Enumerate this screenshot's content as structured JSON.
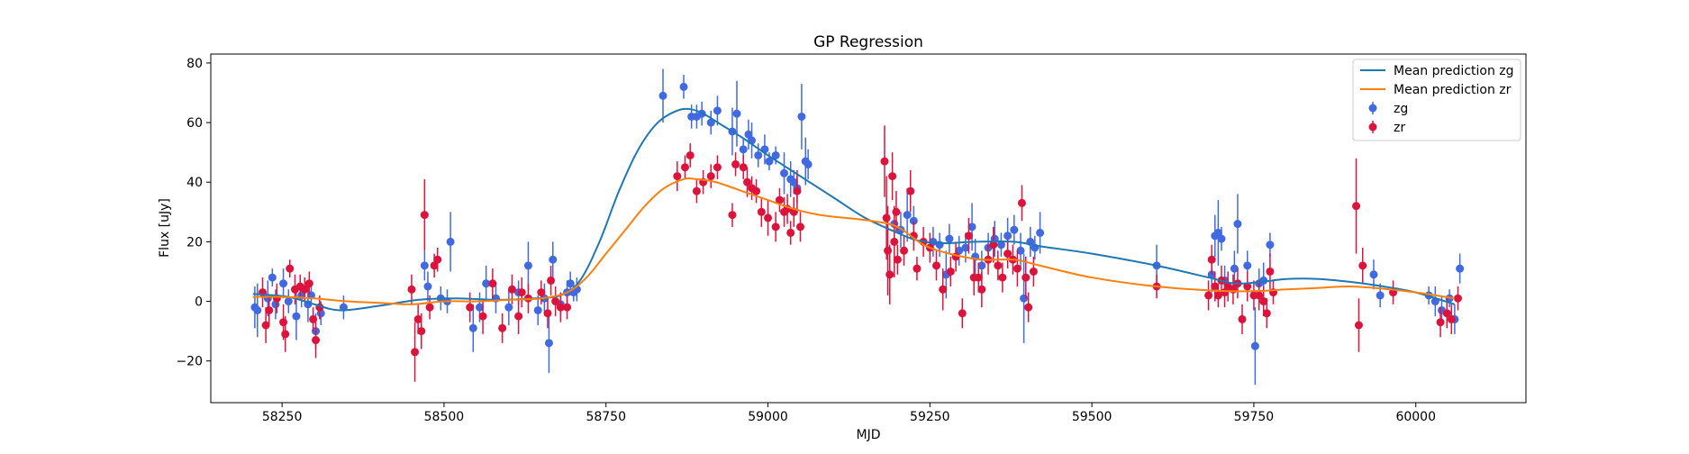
{
  "chart_data": {
    "type": "scatter",
    "title": "GP Regression",
    "xlabel": "MJD",
    "ylabel": "Flux [uJy]",
    "xlim": [
      58140,
      60170
    ],
    "ylim": [
      -34,
      83
    ],
    "x_ticks": [
      58250,
      58500,
      58750,
      59000,
      59250,
      59500,
      59750,
      60000
    ],
    "y_ticks": [
      -20,
      0,
      20,
      40,
      60,
      80
    ],
    "grid": false,
    "legend_position": "top-right",
    "colors": {
      "zg_mean": "#1f77b4",
      "zr_mean": "#ff7f0e",
      "zg_points": "#4169e1",
      "zr_points": "#dc143c"
    },
    "lines": [
      {
        "name": "Mean prediction zg",
        "x": [
          58205,
          58260,
          58300,
          58340,
          58400,
          58460,
          58520,
          58580,
          58640,
          58680,
          58710,
          58740,
          58770,
          58800,
          58830,
          58860,
          58880,
          58900,
          58930,
          58960,
          59000,
          59050,
          59100,
          59150,
          59200,
          59230,
          59270,
          59320,
          59380,
          59420,
          59500,
          59600,
          59680,
          59720,
          59760,
          59800,
          59850,
          59900,
          59950,
          60000,
          60060
        ],
        "y": [
          2.5,
          1.5,
          -1,
          -3,
          -1.5,
          0.5,
          1,
          0.5,
          1,
          2,
          7,
          20,
          37,
          51,
          60,
          64,
          64.5,
          63,
          59,
          55,
          49,
          42,
          35,
          28,
          23,
          20.5,
          19.5,
          20,
          20,
          18.5,
          16,
          12,
          8,
          6,
          6.5,
          7.5,
          7.5,
          6.5,
          5,
          3,
          -1
        ]
      },
      {
        "name": "Mean prediction zr",
        "x": [
          58205,
          58250,
          58300,
          58350,
          58400,
          58450,
          58500,
          58550,
          58600,
          58650,
          58690,
          58720,
          58750,
          58780,
          58810,
          58840,
          58870,
          58890,
          58920,
          58960,
          59000,
          59040,
          59080,
          59120,
          59160,
          59200,
          59240,
          59280,
          59330,
          59380,
          59420,
          59500,
          59600,
          59700,
          59760,
          59800,
          59850,
          59900,
          59960,
          60000,
          60060
        ],
        "y": [
          1.5,
          1.5,
          1,
          0,
          -0.5,
          -1,
          0,
          0,
          0.5,
          1,
          3,
          8,
          16,
          24,
          32,
          38,
          41,
          41,
          40,
          37,
          34,
          31,
          29,
          28,
          27,
          25,
          19,
          16,
          14,
          14,
          12,
          8,
          5,
          3.5,
          3.5,
          4,
          4.5,
          5,
          4,
          3,
          1
        ]
      }
    ],
    "series": [
      {
        "name": "zg",
        "points": [
          [
            58208,
            -2,
            7
          ],
          [
            58212,
            -3,
            9
          ],
          [
            58228,
            1,
            6
          ],
          [
            58235,
            8,
            3
          ],
          [
            58240,
            -1,
            5
          ],
          [
            58252,
            6,
            5
          ],
          [
            58260,
            0,
            4
          ],
          [
            58272,
            -5,
            8
          ],
          [
            58280,
            2,
            4
          ],
          [
            58290,
            -1,
            6
          ],
          [
            58295,
            2,
            3
          ],
          [
            58302,
            -10,
            6
          ],
          [
            58310,
            -4,
            4
          ],
          [
            58345,
            -2,
            4
          ],
          [
            58470,
            12,
            5
          ],
          [
            58475,
            5,
            5
          ],
          [
            58495,
            1,
            4
          ],
          [
            58505,
            0,
            4
          ],
          [
            58510,
            20,
            10
          ],
          [
            58545,
            -9,
            8
          ],
          [
            58555,
            -2,
            5
          ],
          [
            58565,
            6,
            6
          ],
          [
            58580,
            1,
            5
          ],
          [
            58600,
            -2,
            6
          ],
          [
            58615,
            3,
            4
          ],
          [
            58630,
            12,
            8
          ],
          [
            58645,
            -3,
            5
          ],
          [
            58655,
            1,
            5
          ],
          [
            58662,
            -14,
            10
          ],
          [
            58668,
            14,
            6
          ],
          [
            58680,
            -1,
            4
          ],
          [
            58690,
            3,
            4
          ],
          [
            58695,
            6,
            4
          ],
          [
            58700,
            3,
            3
          ],
          [
            58705,
            4,
            4
          ],
          [
            58838,
            69,
            9
          ],
          [
            58870,
            72,
            4
          ],
          [
            58882,
            62,
            4
          ],
          [
            58890,
            62,
            4
          ],
          [
            58898,
            63,
            4
          ],
          [
            58912,
            60,
            4
          ],
          [
            58922,
            64,
            5
          ],
          [
            58945,
            57,
            8
          ],
          [
            58952,
            63,
            11
          ],
          [
            58962,
            51,
            4
          ],
          [
            58970,
            56,
            5
          ],
          [
            58975,
            54,
            6
          ],
          [
            58985,
            49,
            4
          ],
          [
            58995,
            51,
            5
          ],
          [
            59002,
            47,
            3
          ],
          [
            59012,
            49,
            3
          ],
          [
            59025,
            43,
            7
          ],
          [
            59035,
            41,
            6
          ],
          [
            59040,
            40,
            4
          ],
          [
            59045,
            38,
            5
          ],
          [
            59052,
            62,
            11
          ],
          [
            59058,
            47,
            8
          ],
          [
            59062,
            46,
            5
          ],
          [
            59195,
            26,
            6
          ],
          [
            59205,
            24,
            6
          ],
          [
            59215,
            29,
            9
          ],
          [
            59225,
            27,
            5
          ],
          [
            59255,
            20,
            5
          ],
          [
            59265,
            19,
            4
          ],
          [
            59275,
            9,
            8
          ],
          [
            59280,
            21,
            5
          ],
          [
            59295,
            17,
            5
          ],
          [
            59305,
            18,
            5
          ],
          [
            59315,
            25,
            8
          ],
          [
            59320,
            15,
            6
          ],
          [
            59330,
            12,
            5
          ],
          [
            59340,
            18,
            5
          ],
          [
            59350,
            21,
            6
          ],
          [
            59360,
            19,
            4
          ],
          [
            59370,
            22,
            6
          ],
          [
            59380,
            24,
            5
          ],
          [
            59390,
            17,
            6
          ],
          [
            59395,
            1,
            15
          ],
          [
            59405,
            20,
            5
          ],
          [
            59412,
            18,
            4
          ],
          [
            59420,
            23,
            7
          ],
          [
            59600,
            12,
            7
          ],
          [
            59685,
            9,
            6
          ],
          [
            59690,
            22,
            7
          ],
          [
            59695,
            23,
            11
          ],
          [
            59700,
            21,
            4
          ],
          [
            59705,
            7,
            5
          ],
          [
            59720,
            11,
            6
          ],
          [
            59725,
            26,
            10
          ],
          [
            59740,
            12,
            5
          ],
          [
            59752,
            -15,
            13
          ],
          [
            59758,
            6,
            5
          ],
          [
            59765,
            7,
            6
          ],
          [
            59775,
            19,
            4
          ],
          [
            59935,
            9,
            5
          ],
          [
            59945,
            2,
            4
          ],
          [
            60020,
            2,
            3
          ],
          [
            60030,
            0,
            5
          ],
          [
            60040,
            -3,
            5
          ],
          [
            60052,
            1,
            3
          ],
          [
            60060,
            -6,
            5
          ],
          [
            60068,
            11,
            5
          ]
        ]
      },
      {
        "name": "zr",
        "points": [
          [
            58220,
            3,
            5
          ],
          [
            58225,
            -8,
            6
          ],
          [
            58230,
            -3,
            5
          ],
          [
            58242,
            1,
            5
          ],
          [
            58252,
            -7,
            6
          ],
          [
            58255,
            -11,
            6
          ],
          [
            58262,
            11,
            3
          ],
          [
            58270,
            4,
            5
          ],
          [
            58278,
            5,
            4
          ],
          [
            58285,
            4,
            4
          ],
          [
            58292,
            6,
            4
          ],
          [
            58298,
            -6,
            4
          ],
          [
            58302,
            -13,
            6
          ],
          [
            58308,
            -2,
            4
          ],
          [
            58450,
            4,
            5
          ],
          [
            58455,
            -17,
            10
          ],
          [
            58460,
            -6,
            5
          ],
          [
            58465,
            -10,
            6
          ],
          [
            58470,
            29,
            12
          ],
          [
            58478,
            -2,
            4
          ],
          [
            58485,
            12,
            4
          ],
          [
            58490,
            14,
            4
          ],
          [
            58540,
            -2,
            5
          ],
          [
            58560,
            -5,
            6
          ],
          [
            58575,
            6,
            5
          ],
          [
            58590,
            -9,
            5
          ],
          [
            58605,
            4,
            5
          ],
          [
            58615,
            -5,
            6
          ],
          [
            58620,
            3,
            5
          ],
          [
            58630,
            1,
            5
          ],
          [
            58650,
            3,
            4
          ],
          [
            58660,
            -4,
            5
          ],
          [
            58665,
            7,
            5
          ],
          [
            58672,
            0,
            5
          ],
          [
            58680,
            -2,
            5
          ],
          [
            58690,
            -2,
            4
          ],
          [
            58860,
            42,
            5
          ],
          [
            58872,
            45,
            4
          ],
          [
            58880,
            49,
            4
          ],
          [
            58890,
            37,
            4
          ],
          [
            58900,
            40,
            4
          ],
          [
            58912,
            42,
            4
          ],
          [
            58922,
            45,
            4
          ],
          [
            58945,
            29,
            4
          ],
          [
            58950,
            46,
            4
          ],
          [
            58962,
            45,
            4
          ],
          [
            58968,
            40,
            5
          ],
          [
            58975,
            38,
            4
          ],
          [
            58982,
            37,
            4
          ],
          [
            58990,
            30,
            5
          ],
          [
            59000,
            28,
            6
          ],
          [
            59012,
            25,
            5
          ],
          [
            59018,
            34,
            4
          ],
          [
            59025,
            30,
            5
          ],
          [
            59030,
            31,
            5
          ],
          [
            59035,
            23,
            4
          ],
          [
            59040,
            30,
            5
          ],
          [
            59045,
            37,
            7
          ],
          [
            59050,
            25,
            5
          ],
          [
            59180,
            47,
            12
          ],
          [
            59183,
            28,
            14
          ],
          [
            59185,
            17,
            15
          ],
          [
            59188,
            9,
            10
          ],
          [
            59192,
            42,
            8
          ],
          [
            59195,
            20,
            12
          ],
          [
            59198,
            30,
            7
          ],
          [
            59200,
            14,
            5
          ],
          [
            59210,
            17,
            5
          ],
          [
            59220,
            37,
            7
          ],
          [
            59225,
            22,
            5
          ],
          [
            59230,
            11,
            4
          ],
          [
            59240,
            20,
            5
          ],
          [
            59250,
            18,
            5
          ],
          [
            59260,
            12,
            5
          ],
          [
            59270,
            4,
            7
          ],
          [
            59282,
            10,
            5
          ],
          [
            59290,
            15,
            5
          ],
          [
            59300,
            -4,
            5
          ],
          [
            59310,
            22,
            6
          ],
          [
            59318,
            8,
            6
          ],
          [
            59325,
            8,
            5
          ],
          [
            59330,
            4,
            6
          ],
          [
            59340,
            14,
            5
          ],
          [
            59348,
            19,
            6
          ],
          [
            59355,
            12,
            5
          ],
          [
            59362,
            8,
            5
          ],
          [
            59370,
            16,
            5
          ],
          [
            59378,
            14,
            5
          ],
          [
            59385,
            11,
            6
          ],
          [
            59392,
            33,
            6
          ],
          [
            59398,
            8,
            7
          ],
          [
            59402,
            -2,
            5
          ],
          [
            59410,
            10,
            5
          ],
          [
            59600,
            5,
            4
          ],
          [
            59680,
            2,
            5
          ],
          [
            59685,
            14,
            5
          ],
          [
            59690,
            5,
            5
          ],
          [
            59695,
            2,
            4
          ],
          [
            59700,
            7,
            5
          ],
          [
            59705,
            3,
            5
          ],
          [
            59710,
            5,
            5
          ],
          [
            59718,
            4,
            5
          ],
          [
            59725,
            6,
            5
          ],
          [
            59732,
            -6,
            5
          ],
          [
            59740,
            5,
            5
          ],
          [
            59750,
            2,
            5
          ],
          [
            59758,
            2,
            5
          ],
          [
            59765,
            0,
            5
          ],
          [
            59770,
            -4,
            5
          ],
          [
            59775,
            10,
            6
          ],
          [
            59780,
            3,
            4
          ],
          [
            59908,
            32,
            16
          ],
          [
            59912,
            -8,
            9
          ],
          [
            59918,
            12,
            6
          ],
          [
            59965,
            3,
            4
          ],
          [
            60038,
            -7,
            5
          ],
          [
            60048,
            -4,
            5
          ],
          [
            60055,
            -6,
            5
          ],
          [
            60065,
            1,
            4
          ]
        ]
      }
    ]
  }
}
